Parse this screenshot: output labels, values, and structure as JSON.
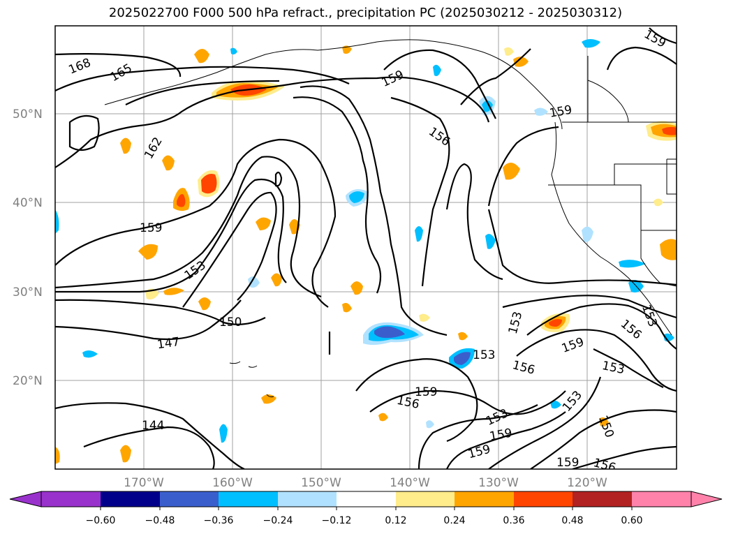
{
  "title": "2025022700 F000 500 hPa refract., precipitation PC (2025030212 - 2025030312)",
  "map": {
    "lat_ticks": [
      "20°N",
      "30°N",
      "40°N",
      "50°N"
    ],
    "lon_ticks": [
      "170°W",
      "160°W",
      "150°W",
      "140°W",
      "130°W",
      "120°W"
    ],
    "contour_levels": [
      "168",
      "165",
      "162",
      "159",
      "156",
      "153",
      "150",
      "147",
      "144"
    ],
    "contour_labels": [
      {
        "text": "168"
      },
      {
        "text": "165"
      },
      {
        "text": "162"
      },
      {
        "text": "159"
      },
      {
        "text": "153"
      },
      {
        "text": "150"
      },
      {
        "text": "147"
      },
      {
        "text": "144"
      },
      {
        "text": "159"
      },
      {
        "text": "156"
      },
      {
        "text": "159"
      },
      {
        "text": "159"
      },
      {
        "text": "153"
      },
      {
        "text": "153"
      },
      {
        "text": "156"
      },
      {
        "text": "159"
      },
      {
        "text": "153"
      },
      {
        "text": "156"
      },
      {
        "text": "159"
      },
      {
        "text": "153"
      },
      {
        "text": "159"
      },
      {
        "text": "159"
      },
      {
        "text": "159"
      },
      {
        "text": "156"
      },
      {
        "text": "153"
      },
      {
        "text": "150"
      },
      {
        "text": "156"
      },
      {
        "text": "153"
      }
    ]
  },
  "colorbar": {
    "tick_labels": [
      "−0.60",
      "−0.48",
      "−0.36",
      "−0.24",
      "−0.12",
      "0.12",
      "0.24",
      "0.36",
      "0.48",
      "0.60"
    ],
    "colors": [
      "#9932cc",
      "#00008b",
      "#3a5fcd",
      "#00bfff",
      "#b0e2ff",
      "#ffffff",
      "#ffec8b",
      "#ffa500",
      "#ff4500",
      "#b22222",
      "#ff82ab"
    ]
  }
}
